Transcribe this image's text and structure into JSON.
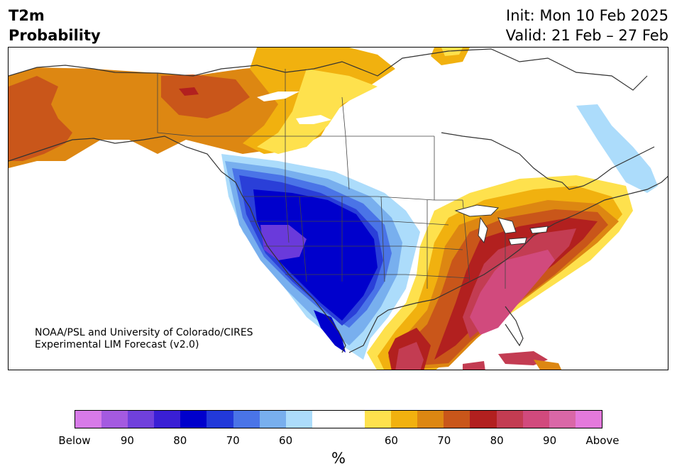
{
  "title": {
    "line1": "T2m",
    "line2": "Probability"
  },
  "init": "Init: Mon 10 Feb 2025",
  "valid": "Valid: 21 Feb – 27 Feb",
  "credit": {
    "line1": "NOAA/PSL and University of Colorado/CIRES",
    "line2": "Experimental LIM Forecast (v2.0)"
  },
  "colorbar": {
    "colors": [
      "#d77ae8",
      "#a45ae0",
      "#7040dc",
      "#3a1fd5",
      "#0000cc",
      "#2239d9",
      "#4a74e7",
      "#78afee",
      "#acdcfb",
      "#ffffff",
      "#ffffff",
      "#fee14d",
      "#f1b10f",
      "#dd8712",
      "#c9561a",
      "#b2201f",
      "#c33c52",
      "#d14a7d",
      "#d967a7",
      "#e479dc"
    ],
    "tick_labels": [
      "Below",
      "90",
      "80",
      "70",
      "60",
      "60",
      "70",
      "80",
      "90",
      "Above"
    ],
    "unit": "%"
  },
  "colors": {
    "below_deep": "#0000cc",
    "below_purple": "#6a3adb",
    "below_blue": "#2a3fd8",
    "below_mid": "#4a74e7",
    "below_light": "#78afee",
    "below_pale": "#acdcfb",
    "above_yellow": "#fee14d",
    "above_gold": "#f1b10f",
    "above_orange": "#dd8712",
    "above_burnt": "#c9561a",
    "above_red": "#b2201f",
    "above_crimson": "#c33c52",
    "above_pink": "#d14a7d",
    "coast": "#333333"
  }
}
